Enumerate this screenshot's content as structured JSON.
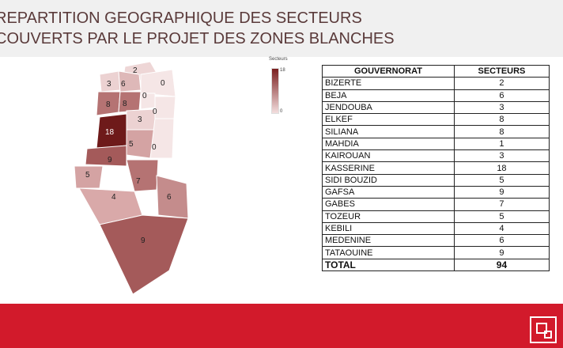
{
  "slide": {
    "title_line1": "REPARTITION GEOGRAPHIQUE DES SECTEURS",
    "title_line2": "COUVERTS PAR LE PROJET DES ZONES BLANCHES"
  },
  "legend": {
    "title": "Secteurs",
    "max": "18",
    "min": "0"
  },
  "table": {
    "headers": [
      "GOUVERNORAT",
      "SECTEURS"
    ],
    "rows": [
      [
        "BIZERTE",
        "2"
      ],
      [
        "BEJA",
        "6"
      ],
      [
        "JENDOUBA",
        "3"
      ],
      [
        "ELKEF",
        "8"
      ],
      [
        "SILIANA",
        "8"
      ],
      [
        "MAHDIA",
        "1"
      ],
      [
        "KAIROUAN",
        "3"
      ],
      [
        "KASSERINE",
        "18"
      ],
      [
        "SIDI BOUZID",
        "5"
      ],
      [
        "GAFSA",
        "9"
      ],
      [
        "GABES",
        "7"
      ],
      [
        "TOZEUR",
        "5"
      ],
      [
        "KEBILI",
        "4"
      ],
      [
        "MEDENINE",
        "6"
      ],
      [
        "TATAOUINE",
        "9"
      ]
    ],
    "total_label": "TOTAL",
    "total_value": "94"
  },
  "map": {
    "labels": [
      "2",
      "3",
      "6",
      "0",
      "0",
      "8",
      "8",
      "0",
      "3",
      "18",
      "5",
      "0",
      "9",
      "5",
      "7",
      "6",
      "4",
      "9"
    ],
    "colors": {
      "dark": "#6e1a1a",
      "mid": "#a45a5a",
      "light": "#d9a9a9",
      "pale": "#eed6d6"
    }
  }
}
